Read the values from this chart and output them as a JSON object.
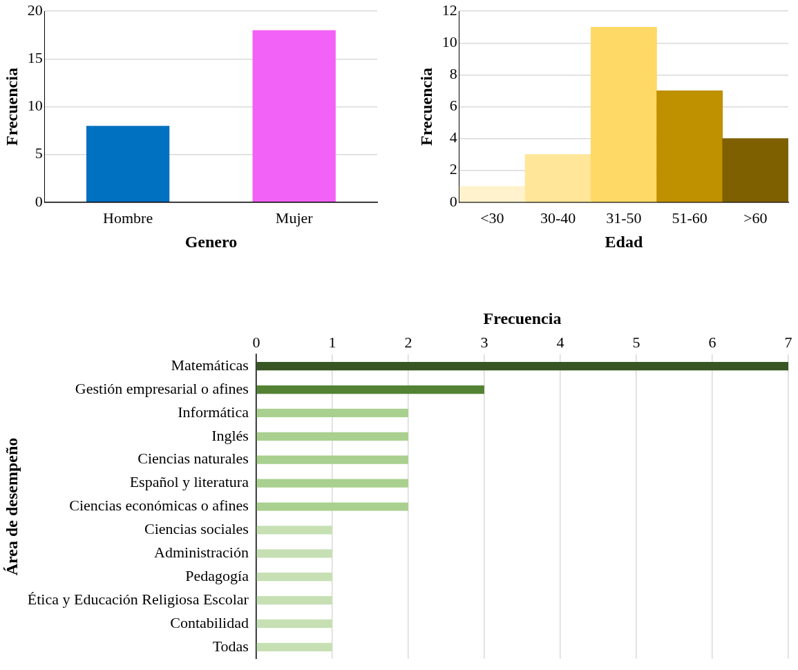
{
  "chart_data": [
    {
      "type": "bar",
      "xlabel": "Genero",
      "ylabel": "Frecuencia",
      "categories": [
        "Hombre",
        "Mujer"
      ],
      "values": [
        8,
        18
      ],
      "colors": [
        "#0070c0",
        "#f262f7"
      ],
      "ylim": [
        0,
        20
      ],
      "yticks": [
        0,
        5,
        10,
        15,
        20
      ],
      "grid": "y"
    },
    {
      "type": "bar",
      "xlabel": "Edad",
      "ylabel": "Frecuencia",
      "categories": [
        "<30",
        "30-40",
        "31-50",
        "51-60",
        ">60"
      ],
      "values": [
        1,
        3,
        11,
        7,
        4
      ],
      "colors": [
        "#fff2cc",
        "#ffe699",
        "#ffd966",
        "#bf9000",
        "#7f6000"
      ],
      "ylim": [
        0,
        12
      ],
      "yticks": [
        0,
        2,
        4,
        6,
        8,
        10,
        12
      ],
      "grid": "y"
    },
    {
      "type": "bar",
      "orientation": "horizontal",
      "xlabel": "Frecuencia",
      "ylabel": "Área de desempeño",
      "categories": [
        "Matemáticas",
        "Gestión empresarial o afines",
        "Informática",
        "Inglés",
        "Ciencias naturales",
        "Español y literatura",
        "Ciencias económicas o afines",
        "Ciencias sociales",
        "Administración",
        "Pedagogía",
        "Ética y Educación Religiosa Escolar",
        "Contabilidad",
        "Todas"
      ],
      "values": [
        7,
        3,
        2,
        2,
        2,
        2,
        2,
        1,
        1,
        1,
        1,
        1,
        1
      ],
      "colors": [
        "#375623",
        "#548235",
        "#a9d08e",
        "#a9d08e",
        "#a9d08e",
        "#a9d08e",
        "#a9d08e",
        "#c6e0b4",
        "#c6e0b4",
        "#c6e0b4",
        "#c6e0b4",
        "#c6e0b4",
        "#c6e0b4"
      ],
      "xlim": [
        0,
        7
      ],
      "xticks": [
        0,
        1,
        2,
        3,
        4,
        5,
        6,
        7
      ],
      "grid": "x"
    }
  ]
}
